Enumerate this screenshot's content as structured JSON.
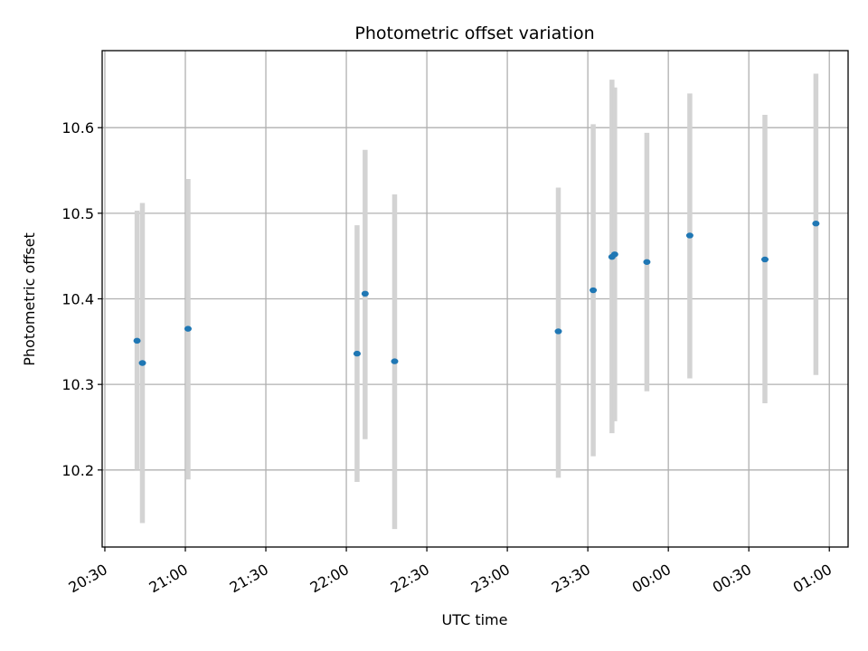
{
  "chart_data": {
    "type": "scatter",
    "title": "Photometric offset variation",
    "xlabel": "UTC time",
    "ylabel": "Photometric offset",
    "xlim": [
      "20:29",
      "01:07"
    ],
    "ylim": [
      10.11,
      10.69
    ],
    "grid": true,
    "x_ticks": [
      "20:30",
      "21:00",
      "21:30",
      "22:00",
      "22:30",
      "23:00",
      "23:30",
      "00:00",
      "00:30",
      "01:00"
    ],
    "y_ticks": [
      "10.2",
      "10.3",
      "10.4",
      "10.5",
      "10.6"
    ],
    "series": [
      {
        "points": [
          {
            "time": "20:42",
            "y": 10.351,
            "err_low": 10.2,
            "err_high": 10.503
          },
          {
            "time": "20:44",
            "y": 10.325,
            "err_low": 10.138,
            "err_high": 10.512
          },
          {
            "time": "21:01",
            "y": 10.365,
            "err_low": 10.189,
            "err_high": 10.54
          },
          {
            "time": "22:04",
            "y": 10.336,
            "err_low": 10.186,
            "err_high": 10.486
          },
          {
            "time": "22:07",
            "y": 10.406,
            "err_low": 10.236,
            "err_high": 10.574
          },
          {
            "time": "22:18",
            "y": 10.327,
            "err_low": 10.131,
            "err_high": 10.522
          },
          {
            "time": "23:19",
            "y": 10.362,
            "err_low": 10.191,
            "err_high": 10.53
          },
          {
            "time": "23:32",
            "y": 10.41,
            "err_low": 10.216,
            "err_high": 10.604
          },
          {
            "time": "23:39",
            "y": 10.449,
            "err_low": 10.243,
            "err_high": 10.656
          },
          {
            "time": "23:40",
            "y": 10.452,
            "err_low": 10.257,
            "err_high": 10.647
          },
          {
            "time": "23:52",
            "y": 10.443,
            "err_low": 10.292,
            "err_high": 10.594
          },
          {
            "time": "00:08",
            "y": 10.474,
            "err_low": 10.307,
            "err_high": 10.64
          },
          {
            "time": "00:36",
            "y": 10.446,
            "err_low": 10.278,
            "err_high": 10.615
          },
          {
            "time": "00:55",
            "y": 10.488,
            "err_low": 10.311,
            "err_high": 10.663
          }
        ]
      }
    ],
    "colors": {
      "point": "#1f77b4",
      "errorbar": "#d3d3d3",
      "grid": "#b0b0b0",
      "axes": "#000000"
    }
  }
}
